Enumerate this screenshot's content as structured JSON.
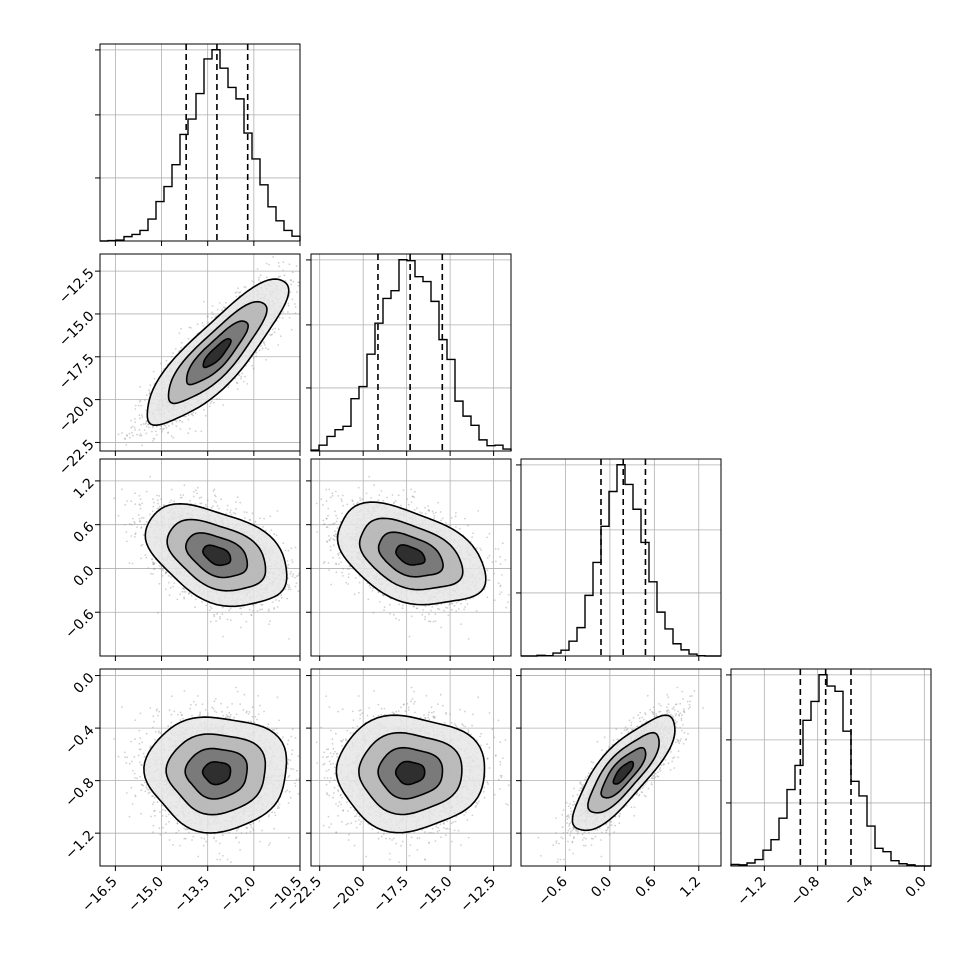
{
  "chart_data": {
    "type": "corner-plot",
    "parameters": 4,
    "axes": [
      {
        "range": [
          -17.0,
          -10.5
        ],
        "ticks": [
          -16.5,
          -15.0,
          -13.5,
          -12.0,
          -10.5
        ],
        "tick_labels": [
          "−16.5",
          "−15.0",
          "−13.5",
          "−12.0",
          "−10.5"
        ]
      },
      {
        "range": [
          -23.0,
          -11.5
        ],
        "ticks": [
          -22.5,
          -20.0,
          -17.5,
          -15.0,
          -12.5
        ],
        "tick_labels": [
          "−22.5",
          "−20.0",
          "−17.5",
          "−15.0",
          "−12.5"
        ]
      },
      {
        "range": [
          -1.2,
          1.5
        ],
        "ticks": [
          -0.6,
          0.0,
          0.6,
          1.2
        ],
        "tick_labels": [
          "−0.6",
          "0.0",
          "0.6",
          "1.2"
        ]
      },
      {
        "range": [
          -1.45,
          0.05
        ],
        "ticks": [
          -1.2,
          -0.8,
          -0.4,
          0.0
        ],
        "tick_labels": [
          "−1.2",
          "−0.8",
          "−0.4",
          "0.0"
        ]
      }
    ],
    "marginals": [
      {
        "param": 0,
        "mean": -13.2,
        "sd": 1.0,
        "quantiles": [
          -14.2,
          -13.2,
          -12.2
        ]
      },
      {
        "param": 1,
        "mean": -17.3,
        "sd": 1.85,
        "quantiles": [
          -19.15,
          -17.3,
          -15.45
        ]
      },
      {
        "param": 2,
        "mean": 0.18,
        "sd": 0.3,
        "quantiles": [
          -0.12,
          0.18,
          0.48
        ]
      },
      {
        "param": 3,
        "mean": -0.74,
        "sd": 0.19,
        "quantiles": [
          -0.93,
          -0.74,
          -0.55
        ]
      }
    ],
    "correlations": [
      {
        "pair": [
          0,
          1
        ],
        "rho": 0.85
      },
      {
        "pair": [
          0,
          2
        ],
        "rho": -0.4
      },
      {
        "pair": [
          1,
          2
        ],
        "rho": -0.4
      },
      {
        "pair": [
          0,
          3
        ],
        "rho": 0.0
      },
      {
        "pair": [
          1,
          3
        ],
        "rho": 0.0
      },
      {
        "pair": [
          2,
          3
        ],
        "rho": 0.8
      }
    ],
    "grid": true,
    "histogram": "step",
    "quantile_lines": "dashed",
    "colors": {
      "line": "#000000",
      "points": "#999999",
      "grid": "#b0b0b0"
    }
  }
}
